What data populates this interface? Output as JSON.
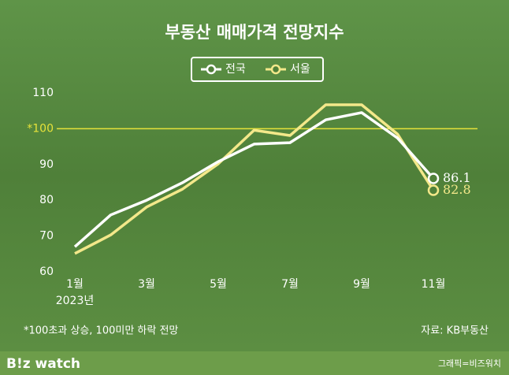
{
  "chart_data": {
    "type": "line",
    "title": "부동산 매매가격 전망지수",
    "categories": [
      "1월",
      null,
      "3월",
      null,
      "5월",
      null,
      "7월",
      null,
      "9월",
      null,
      "11월"
    ],
    "year_label": "2023년",
    "series": [
      {
        "name": "전국",
        "color": "#ffffff",
        "values": [
          67.0,
          75.9,
          80.0,
          84.9,
          90.8,
          95.7,
          96.1,
          102.5,
          104.5,
          97.4,
          86.1
        ]
      },
      {
        "name": "서울",
        "color": "#f3e88a",
        "values": [
          65.1,
          70.3,
          78.1,
          83.1,
          90.2,
          99.6,
          98.1,
          106.7,
          106.7,
          98.5,
          82.8
        ]
      }
    ],
    "ylim": [
      60,
      110
    ],
    "yticks": [
      60,
      70,
      80,
      90,
      {
        "value": 100,
        "label": "*100"
      },
      110
    ],
    "reference_line": {
      "value": 100,
      "color": "#e6e23a"
    },
    "grid": false,
    "footnote": "*100초과 상승, 100미만 하락 전망",
    "source": "자료: KB부동산",
    "logo": "B!z watch",
    "credit": "그래픽=비즈워치"
  }
}
